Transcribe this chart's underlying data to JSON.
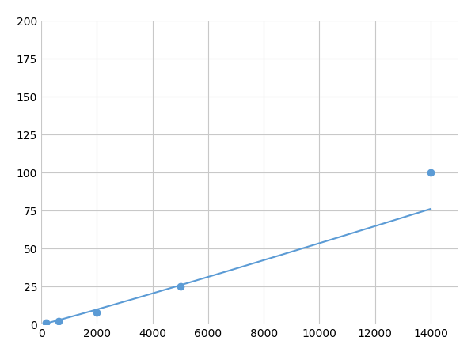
{
  "x_data": [
    156.25,
    625,
    2000,
    5000,
    14000
  ],
  "y_data": [
    1.0,
    2.0,
    8.0,
    25.0,
    100.0
  ],
  "line_color": "#5B9BD5",
  "marker_color": "#5B9BD5",
  "marker_size": 6,
  "linewidth": 1.5,
  "xlim": [
    0,
    15000
  ],
  "ylim": [
    0,
    200
  ],
  "xticks": [
    0,
    2000,
    4000,
    6000,
    8000,
    10000,
    12000,
    14000
  ],
  "yticks": [
    0,
    25,
    50,
    75,
    100,
    125,
    150,
    175,
    200
  ],
  "grid_color": "#C8C8C8",
  "background_color": "#FFFFFF",
  "tick_fontsize": 10,
  "figsize": [
    6.0,
    4.5
  ],
  "dpi": 100
}
